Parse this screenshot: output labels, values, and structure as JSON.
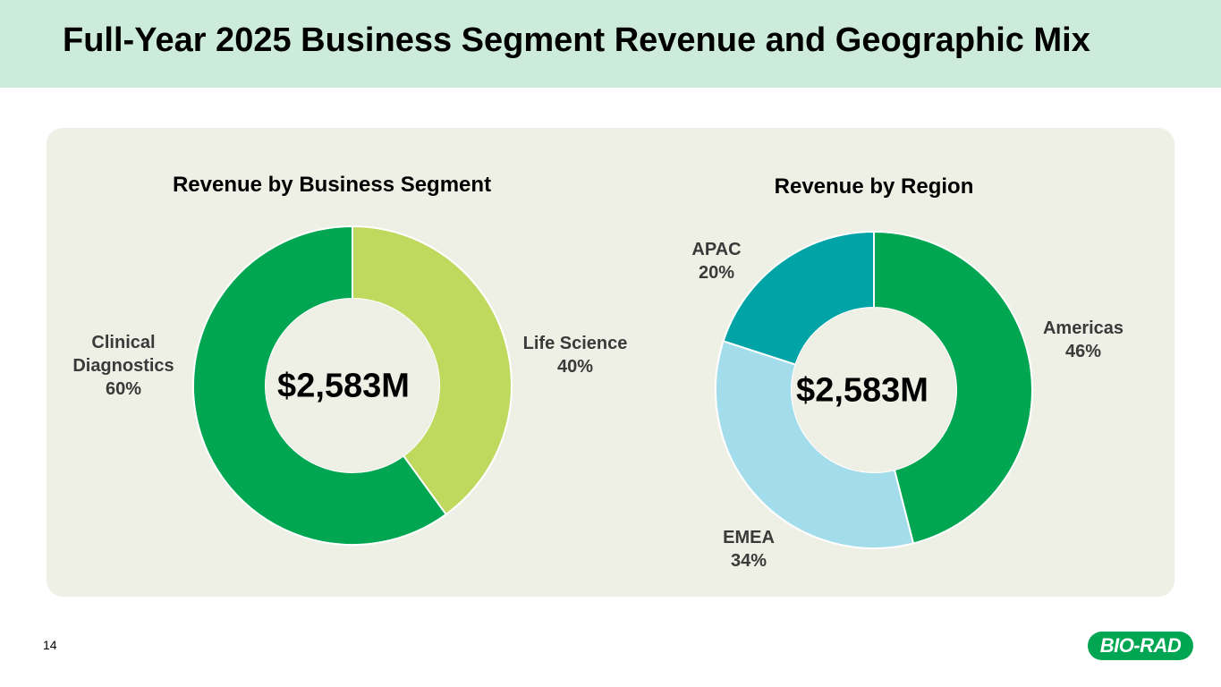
{
  "slide": {
    "title": "Full-Year 2025 Business Segment Revenue and Geographic Mix",
    "page_number": "14",
    "logo_text": "BIO-RAD"
  },
  "chart_data": [
    {
      "type": "pie",
      "title": "Revenue by Business Segment",
      "center_label": "$2,583M",
      "categories": [
        "Life Science",
        "Clinical Diagnostics"
      ],
      "values": [
        40,
        60
      ],
      "value_unit": "%",
      "colors": [
        "#bfd95e",
        "#00a651"
      ],
      "labels": [
        {
          "name": "Life Science",
          "pct": "40%"
        },
        {
          "name": "Clinical Diagnostics",
          "pct": "60%"
        }
      ]
    },
    {
      "type": "pie",
      "title": "Revenue by Region",
      "center_label": "$2,583M",
      "categories": [
        "Americas",
        "EMEA",
        "APAC"
      ],
      "values": [
        46,
        34,
        20
      ],
      "value_unit": "%",
      "colors": [
        "#00a651",
        "#a3dceb",
        "#00a4a6"
      ],
      "labels": [
        {
          "name": "Americas",
          "pct": "46%"
        },
        {
          "name": "EMEA",
          "pct": "34%"
        },
        {
          "name": "APAC",
          "pct": "20%"
        }
      ]
    }
  ]
}
